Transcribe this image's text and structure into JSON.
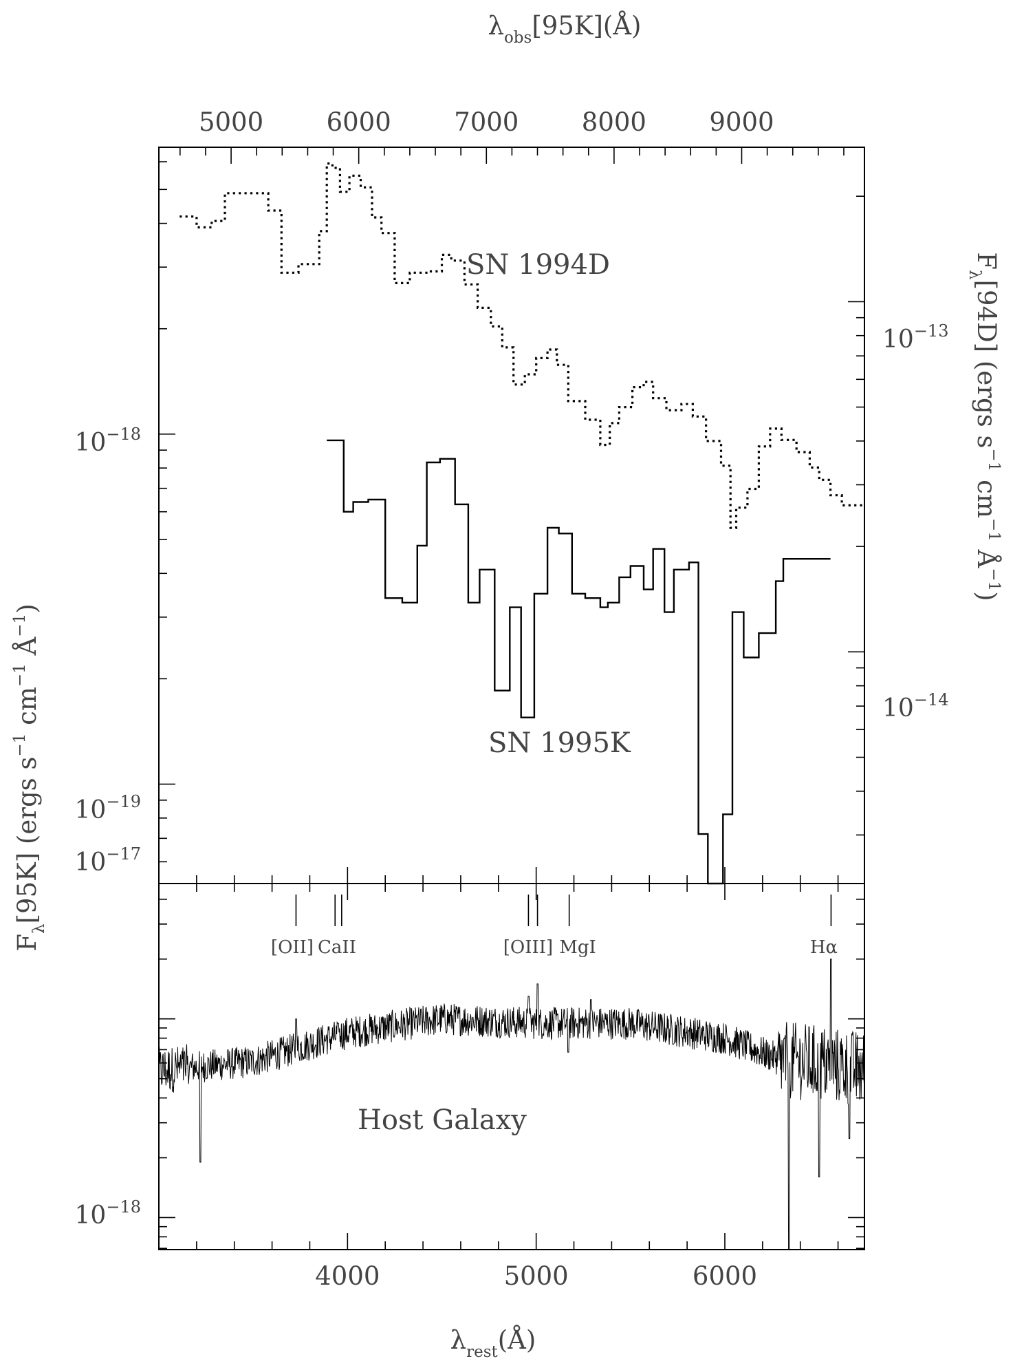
{
  "chart_data": [
    {
      "panel": "top",
      "type": "line",
      "top_axis": {
        "label": "λobs[95K](Å)",
        "label_main": "λ",
        "label_sub": "obs",
        "label_rest": "[95K](Å)",
        "ticks": [
          5000,
          6000,
          7000,
          8000,
          9000
        ]
      },
      "left_axis": {
        "scale": "log",
        "ylim": [
          5.2e-20,
          6.6e-18
        ],
        "tick_labels": [
          {
            "value": 1e-18,
            "label": "10−18",
            "base": "10",
            "exp": "−18"
          },
          {
            "value": 1e-19,
            "label": "10−19",
            "base": "10",
            "exp": "−19"
          }
        ]
      },
      "right_axis": {
        "label": "Fλ[94D] (ergs s−1 cm−1 Å−1)",
        "label_parts": [
          "F",
          "λ",
          "[94D] (ergs s",
          "−1",
          " cm",
          "−1",
          " Å",
          "−1",
          ")"
        ],
        "scale": "log",
        "ylim": [
          2.18e-15,
          2.76e-13
        ],
        "tick_labels": [
          {
            "value": 1e-13,
            "label": "10−13",
            "base": "10",
            "exp": "−13"
          },
          {
            "value": 1e-14,
            "label": "10−14",
            "base": "10",
            "exp": "−14"
          }
        ]
      },
      "series": [
        {
          "name": "SN 1994D",
          "style": "dotted",
          "axis": "right",
          "step_x": [
            3110,
            3200,
            3280,
            3350,
            3490,
            3580,
            3650,
            3740,
            3850,
            3890,
            3920,
            3960,
            4010,
            4070,
            4130,
            4180,
            4250,
            4330,
            4430,
            4500,
            4550,
            4620,
            4690,
            4760,
            4820,
            4880,
            4940,
            5000,
            5060,
            5110,
            5170,
            5260,
            5340,
            5390,
            5440,
            5510,
            5570,
            5620,
            5690,
            5770,
            5830,
            5900,
            5980,
            6030,
            6060,
            6120,
            6180,
            6240,
            6300,
            6380,
            6450,
            6500,
            6560,
            6620,
            6690,
            6730
          ],
          "step_y": [
            1.75e-13,
            1.63e-13,
            1.7e-13,
            2.04e-13,
            2.04e-13,
            1.82e-13,
            1.21e-13,
            1.28e-13,
            1.59e-13,
            2.48e-13,
            2.41e-13,
            2.06e-13,
            2.29e-13,
            2.12e-13,
            1.74e-13,
            1.57e-13,
            1.13e-13,
            1.21e-13,
            1.22e-13,
            1.36e-13,
            1.31e-13,
            1.12e-13,
            9.6e-14,
            8.5e-14,
            7.4e-14,
            5.8e-14,
            6.2e-14,
            6.9e-14,
            7.3e-14,
            6.6e-14,
            5.2e-14,
            4.6e-14,
            3.9e-14,
            4.5e-14,
            5e-14,
            5.7e-14,
            5.9e-14,
            5.3e-14,
            4.9e-14,
            5.1e-14,
            4.7e-14,
            4e-14,
            3.4e-14,
            2.26e-14,
            2.58e-14,
            2.92e-14,
            3.86e-14,
            4.34e-14,
            4.03e-14,
            3.72e-14,
            3.36e-14,
            3.1e-14,
            2.8e-14,
            2.62e-14,
            2.62e-14,
            2.62e-14
          ]
        },
        {
          "name": "SN 1995K",
          "style": "solid",
          "axis": "left",
          "step_x": [
            3890,
            3980,
            4030,
            4110,
            4200,
            4290,
            4370,
            4420,
            4490,
            4570,
            4640,
            4700,
            4780,
            4860,
            4920,
            4990,
            5060,
            5120,
            5190,
            5260,
            5340,
            5380,
            5440,
            5500,
            5570,
            5620,
            5680,
            5730,
            5810,
            5860,
            5910,
            5990,
            6040,
            6100,
            6180,
            6270,
            6310,
            6370,
            6440,
            6510,
            6560
          ],
          "step_y": [
            9.6e-19,
            6e-19,
            6.4e-19,
            6.5e-19,
            3.4e-19,
            3.3e-19,
            4.8e-19,
            8.3e-19,
            8.5e-19,
            6.3e-19,
            3.3e-19,
            4.1e-19,
            1.85e-19,
            3.2e-19,
            1.55e-19,
            3.5e-19,
            5.4e-19,
            5.2e-19,
            3.5e-19,
            3.4e-19,
            3.2e-19,
            3.3e-19,
            3.9e-19,
            4.2e-19,
            3.6e-19,
            4.7e-19,
            3.1e-19,
            4.1e-19,
            4.3e-19,
            7.2e-20,
            5.2e-20,
            8.2e-20,
            3.1e-19,
            2.3e-19,
            2.7e-19,
            3.8e-19,
            4.4e-19,
            4.4e-19,
            4.4e-19,
            4.4e-19,
            4.4e-19
          ]
        }
      ],
      "annotations": [
        {
          "text": "SN 1994D",
          "series": "SN 1994D"
        },
        {
          "text": "SN 1995K",
          "series": "SN 1995K"
        }
      ]
    },
    {
      "panel": "bottom",
      "type": "line",
      "x_axis": {
        "label": "λrest(Å)",
        "label_main": "λ",
        "label_sub": "rest",
        "label_rest": "(Å)",
        "xlim": [
          3000,
          6740
        ],
        "ticks": [
          4000,
          5000,
          6000
        ]
      },
      "left_axis": {
        "label": "Fλ[95K] (ergs s−1 cm−1 Å−1)",
        "label_parts": [
          "F",
          "λ",
          "[95K] (ergs s",
          "−1",
          " cm",
          "−1",
          " Å",
          "−1",
          ")"
        ],
        "scale": "log",
        "ylim": [
          6.9e-19,
          4.8e-17
        ],
        "tick_labels": [
          {
            "value": 1e-17,
            "label": "10−17",
            "base": "10",
            "exp": "−17"
          },
          {
            "value": 1e-18,
            "label": "10−18",
            "base": "10",
            "exp": "−18"
          }
        ]
      },
      "series": [
        {
          "name": "Host Galaxy",
          "style": "solid",
          "continuum_x": [
            3000,
            3500,
            4000,
            4500,
            5000,
            5500,
            6000,
            6300,
            6500,
            6740
          ],
          "continuum_y": [
            5.5e-18,
            6.1e-18,
            8.5e-18,
            1e-17,
            9.5e-18,
            9.5e-18,
            8e-18,
            6.2e-18,
            6e-18,
            5.5e-18
          ],
          "features_x": [
            3220,
            3727,
            3950,
            4960,
            5007,
            5170,
            5290,
            6340,
            6500,
            6563,
            6660
          ],
          "features_y": [
            1.9e-18,
            1e-17,
            9.5e-18,
            1.3e-17,
            1.5e-17,
            6.8e-18,
            1.25e-17,
            6.9e-19,
            1.6e-18,
            2e-17,
            2.5e-18
          ]
        }
      ],
      "line_markers": [
        {
          "label": "[OII]",
          "wavelengths": [
            3727
          ]
        },
        {
          "label": "CaII",
          "wavelengths": [
            3934,
            3969
          ]
        },
        {
          "label": "[OIII]",
          "wavelengths": [
            4959,
            5007
          ]
        },
        {
          "label": "MgI",
          "wavelengths": [
            5175
          ]
        },
        {
          "label": "Hα",
          "wavelengths": [
            6563
          ]
        }
      ],
      "annotations": [
        {
          "text": "Host Galaxy",
          "series": "Host Galaxy"
        }
      ]
    }
  ]
}
